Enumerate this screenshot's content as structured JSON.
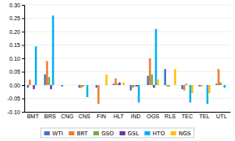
{
  "chart_data": {
    "type": "bar",
    "categories": [
      "BMT",
      "BRS",
      "CNG",
      "CNS",
      "FIN",
      "HLT",
      "IND",
      "OGS",
      "RLS",
      "TEC",
      "TEL",
      "UTL"
    ],
    "series": [
      {
        "name": "WTI",
        "color": "#4472C4",
        "values": [
          -0.01,
          0.04,
          -0.005,
          -0.01,
          -0.01,
          0.005,
          -0.02,
          0.035,
          0.06,
          -0.015,
          -0.005,
          0.005
        ]
      },
      {
        "name": "BRT",
        "color": "#ED7D31",
        "values": [
          0.02,
          0.09,
          0.0,
          -0.01,
          -0.07,
          0.025,
          -0.01,
          0.1,
          -0.005,
          -0.02,
          -0.005,
          0.06
        ]
      },
      {
        "name": "GSO",
        "color": "#70AD47",
        "values": [
          0.0,
          0.03,
          0.0,
          -0.005,
          0.0,
          0.005,
          -0.005,
          0.04,
          -0.005,
          0.005,
          0.0,
          0.01
        ]
      },
      {
        "name": "GSL",
        "color": "#7030A0",
        "values": [
          -0.015,
          -0.015,
          0.0,
          0.0,
          0.0,
          0.01,
          -0.005,
          -0.01,
          0.0,
          0.0,
          0.0,
          0.0
        ]
      },
      {
        "name": "HTO",
        "color": "#00B0F0",
        "values": [
          0.145,
          0.26,
          0.0,
          -0.045,
          0.0,
          0.0,
          -0.065,
          0.21,
          0.0,
          -0.065,
          -0.07,
          -0.01
        ]
      },
      {
        "name": "NGS",
        "color": "#FFC000",
        "values": [
          0.0,
          0.0,
          0.0,
          0.0,
          0.04,
          0.01,
          0.0,
          0.02,
          0.06,
          -0.03,
          -0.03,
          0.0
        ]
      }
    ],
    "ylim": [
      -0.1,
      0.3
    ],
    "yticks": [
      {
        "value": -0.1,
        "label": "-0.10"
      },
      -0.05,
      {
        "value": 0.0,
        "label": "0.00"
      },
      0.05,
      {
        "value": 0.1,
        "label": "0.10"
      },
      0.15,
      {
        "value": 0.2,
        "label": "0.20"
      },
      0.25,
      {
        "value": 0.3,
        "label": "0.30"
      }
    ],
    "grid": true,
    "legend": "bottom"
  }
}
